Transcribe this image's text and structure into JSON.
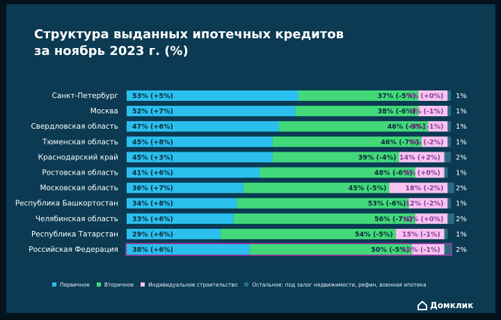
{
  "title": {
    "line1": "Структура выданных ипотечных кредитов",
    "line2": "за ноябрь 2023 г. (%)"
  },
  "colors": {
    "primary": "#2bbfee",
    "secondary": "#43d97a",
    "individual": "#f8c4f0",
    "other": "#2b6b85",
    "primary_text": "#0b2a3a",
    "secondary_text": "#0b2a3a",
    "individual_text": "#8a3a9a",
    "highlight_border": "#b03cb0"
  },
  "legend": {
    "items": [
      {
        "key": "primary",
        "label": "Первичное",
        "color": "#2bbfee"
      },
      {
        "key": "secondary",
        "label": "Вторичное",
        "color": "#43d97a"
      },
      {
        "key": "individual",
        "label": "Индивидуальное строительство",
        "color": "#f8c4f0"
      },
      {
        "key": "other",
        "label": "Остальное: под залог недвижимости, рефин, военная ипотека",
        "color": "#2b6b85"
      }
    ]
  },
  "brand": {
    "name": "Домклик"
  },
  "chart_data": {
    "type": "bar",
    "orientation": "horizontal",
    "stacked": true,
    "title": "Структура выданных ипотечных кредитов за ноябрь 2023 г. (%)",
    "xlim": [
      0,
      100
    ],
    "categories": [
      "Санкт-Петербург",
      "Москва",
      "Свердловская область",
      "Тюменская область",
      "Краснодарский край",
      "Ростовская область",
      "Московская область",
      "Республика Башкортостан",
      "Челябинская область",
      "Республика Татарстан",
      "Российская Федерация"
    ],
    "highlighted_category": "Российская Федерация",
    "series": [
      {
        "name": "Первичное",
        "values": [
          53,
          52,
          47,
          45,
          45,
          41,
          36,
          34,
          33,
          29,
          38
        ],
        "labels": [
          "53% (+5%)",
          "52% (+7%)",
          "47% (+6%)",
          "45% (+8%)",
          "45% (+3%)",
          "41% (+6%)",
          "36% (+7%)",
          "34% (+8%)",
          "33% (+6%)",
          "29% (+6%)",
          "38% (+6%)"
        ]
      },
      {
        "name": "Вторичное",
        "values": [
          37,
          38,
          46,
          46,
          39,
          48,
          45,
          53,
          56,
          54,
          50
        ],
        "labels": [
          "37% (-5%)",
          "38% (-6%)",
          "46% (-5%)",
          "46% (-7%)",
          "39% (-4%)",
          "48% (-6%)",
          "45% (-5%)",
          "53% (-6%)",
          "56% (-7%)",
          "54% (-5%)",
          "50% (-5%)"
        ]
      },
      {
        "name": "Индивидуальное строительство",
        "values": [
          9,
          9,
          6,
          8,
          14,
          9,
          18,
          12,
          10,
          15,
          10
        ],
        "labels": [
          "9% (+0%)",
          "9% (-1%)",
          "6% (-1%)",
          "8% (-2%)",
          "14% (+2%)",
          "9% (+0%)",
          "18% (-2%)",
          "12% (-2%)",
          "10% (+0%)",
          "15% (-1%)",
          "10% (-1%)"
        ]
      },
      {
        "name": "Остальное: под залог недвижимости, рефин, военная ипотека",
        "values": [
          1,
          1,
          1,
          1,
          2,
          1,
          2,
          1,
          2,
          1,
          2
        ],
        "labels": [
          "1%",
          "1%",
          "1%",
          "1%",
          "2%",
          "1%",
          "2%",
          "1%",
          "2%",
          "1%",
          "2%"
        ]
      }
    ]
  }
}
